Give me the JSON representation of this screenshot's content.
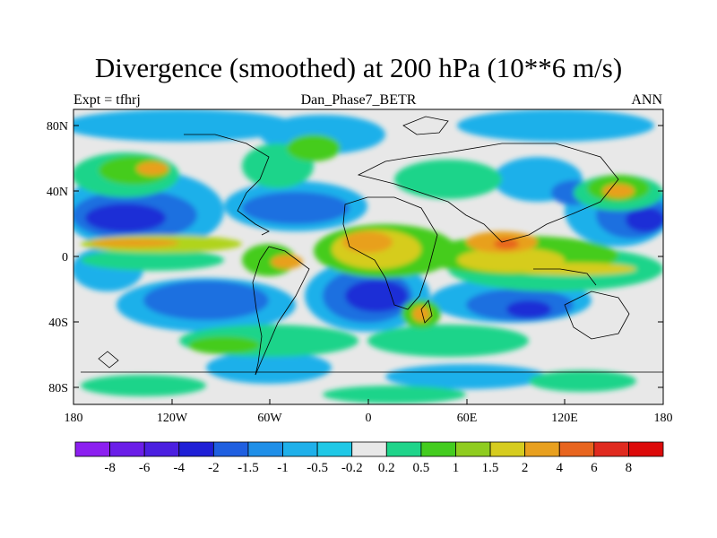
{
  "header": {
    "title": "Divergence (smoothed) at 200 hPa (10**6 m/s)",
    "left_label": "Expt = tfhrj",
    "center_label": "Dan_Phase7_BETR",
    "right_label": "ANN"
  },
  "axes": {
    "y_labels": [
      "80N",
      "40N",
      "0",
      "40S",
      "80S"
    ],
    "x_labels": [
      "180",
      "120W",
      "60W",
      "0",
      "60E",
      "120E",
      "180"
    ]
  },
  "colorbar": {
    "labels": [
      "-8",
      "-6",
      "-4",
      "-2",
      "-1.5",
      "-1",
      "-0.5",
      "-0.2",
      "0.2",
      "0.5",
      "1",
      "1.5",
      "2",
      "4",
      "6",
      "8"
    ],
    "colors": [
      "#8c1ff0",
      "#6b1ee8",
      "#4b1fe0",
      "#1f1fd6",
      "#1f5fe0",
      "#1f8fe8",
      "#1fb0ea",
      "#1fc8e6",
      "#e8e8e8",
      "#1fd48a",
      "#44cc1f",
      "#8fcc1f",
      "#d6cc1f",
      "#e8a01f",
      "#e8651f",
      "#e02a1f",
      "#dc0a0a"
    ],
    "neutral_color": "#e8e8e8"
  },
  "map_colors": {
    "strong_neg": "#1f2fd6",
    "mid_neg": "#1f6fe0",
    "weak_neg": "#1fb0ea",
    "neutral": "#e8e8e8",
    "weak_pos": "#1fd48a",
    "mid_pos": "#44cc1f",
    "light_pos": "#b0d41f",
    "yellow_pos": "#d6cc1f",
    "orange_pos": "#e8a01f",
    "red_pos": "#e8651f"
  }
}
